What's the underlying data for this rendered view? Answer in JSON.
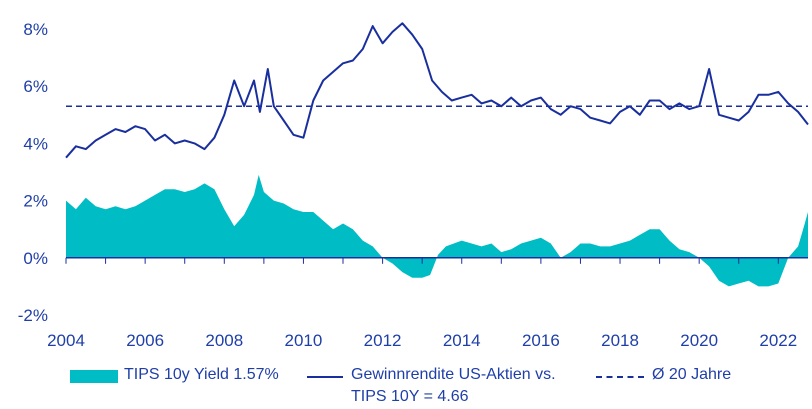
{
  "chart_data": {
    "type": "line",
    "title": "",
    "xlabel": "",
    "ylabel": "",
    "xlim": [
      2004.0,
      2022.75
    ],
    "ylim": [
      -2,
      8
    ],
    "x_ticks": [
      "2004",
      "2006",
      "2008",
      "2010",
      "2012",
      "2014",
      "2016",
      "2018",
      "2020",
      "2022"
    ],
    "y_ticks": [
      "8%",
      "6%",
      "4%",
      "2%",
      "0%",
      "-2%"
    ],
    "y_tick_values": [
      8,
      6,
      4,
      2,
      0,
      -2
    ],
    "x_tick_values": [
      2004,
      2006,
      2008,
      2010,
      2012,
      2014,
      2016,
      2018,
      2020,
      2022
    ],
    "average_value": 5.3,
    "series": [
      {
        "name": "TIPS 10y Yield 1.57%",
        "kind": "area",
        "color": "#00bcc4",
        "points": [
          [
            2004.0,
            2.0
          ],
          [
            2004.25,
            1.7
          ],
          [
            2004.5,
            2.1
          ],
          [
            2004.75,
            1.8
          ],
          [
            2005.0,
            1.7
          ],
          [
            2005.25,
            1.8
          ],
          [
            2005.5,
            1.7
          ],
          [
            2005.75,
            1.8
          ],
          [
            2006.0,
            2.0
          ],
          [
            2006.25,
            2.2
          ],
          [
            2006.5,
            2.4
          ],
          [
            2006.75,
            2.4
          ],
          [
            2007.0,
            2.3
          ],
          [
            2007.25,
            2.4
          ],
          [
            2007.5,
            2.6
          ],
          [
            2007.75,
            2.4
          ],
          [
            2008.0,
            1.7
          ],
          [
            2008.25,
            1.1
          ],
          [
            2008.5,
            1.5
          ],
          [
            2008.75,
            2.2
          ],
          [
            2008.87,
            2.9
          ],
          [
            2009.0,
            2.3
          ],
          [
            2009.25,
            2.0
          ],
          [
            2009.5,
            1.9
          ],
          [
            2009.75,
            1.7
          ],
          [
            2010.0,
            1.6
          ],
          [
            2010.25,
            1.6
          ],
          [
            2010.5,
            1.3
          ],
          [
            2010.75,
            1.0
          ],
          [
            2011.0,
            1.2
          ],
          [
            2011.25,
            1.0
          ],
          [
            2011.5,
            0.6
          ],
          [
            2011.75,
            0.4
          ],
          [
            2012.0,
            0.0
          ],
          [
            2012.25,
            -0.2
          ],
          [
            2012.5,
            -0.5
          ],
          [
            2012.75,
            -0.7
          ],
          [
            2013.0,
            -0.7
          ],
          [
            2013.2,
            -0.6
          ],
          [
            2013.4,
            0.1
          ],
          [
            2013.6,
            0.4
          ],
          [
            2013.8,
            0.5
          ],
          [
            2014.0,
            0.6
          ],
          [
            2014.25,
            0.5
          ],
          [
            2014.5,
            0.4
          ],
          [
            2014.75,
            0.5
          ],
          [
            2015.0,
            0.2
          ],
          [
            2015.25,
            0.3
          ],
          [
            2015.5,
            0.5
          ],
          [
            2015.75,
            0.6
          ],
          [
            2016.0,
            0.7
          ],
          [
            2016.25,
            0.5
          ],
          [
            2016.5,
            0.0
          ],
          [
            2016.75,
            0.2
          ],
          [
            2017.0,
            0.5
          ],
          [
            2017.25,
            0.5
          ],
          [
            2017.5,
            0.4
          ],
          [
            2017.75,
            0.4
          ],
          [
            2018.0,
            0.5
          ],
          [
            2018.25,
            0.6
          ],
          [
            2018.5,
            0.8
          ],
          [
            2018.75,
            1.0
          ],
          [
            2019.0,
            1.0
          ],
          [
            2019.25,
            0.6
          ],
          [
            2019.5,
            0.3
          ],
          [
            2019.75,
            0.2
          ],
          [
            2020.0,
            0.0
          ],
          [
            2020.25,
            -0.3
          ],
          [
            2020.5,
            -0.8
          ],
          [
            2020.75,
            -1.0
          ],
          [
            2021.0,
            -0.9
          ],
          [
            2021.25,
            -0.8
          ],
          [
            2021.5,
            -1.0
          ],
          [
            2021.75,
            -1.0
          ],
          [
            2022.0,
            -0.9
          ],
          [
            2022.25,
            0.0
          ],
          [
            2022.5,
            0.4
          ],
          [
            2022.65,
            1.1
          ],
          [
            2022.75,
            1.6
          ]
        ]
      },
      {
        "name": "Gewinnrendite US-Aktien vs. TIPS 10Y = 4.66",
        "kind": "line",
        "color": "#1a2f9e",
        "points": [
          [
            2004.0,
            3.5
          ],
          [
            2004.25,
            3.9
          ],
          [
            2004.5,
            3.8
          ],
          [
            2004.75,
            4.1
          ],
          [
            2005.0,
            4.3
          ],
          [
            2005.25,
            4.5
          ],
          [
            2005.5,
            4.4
          ],
          [
            2005.75,
            4.6
          ],
          [
            2006.0,
            4.5
          ],
          [
            2006.25,
            4.1
          ],
          [
            2006.5,
            4.3
          ],
          [
            2006.75,
            4.0
          ],
          [
            2007.0,
            4.1
          ],
          [
            2007.25,
            4.0
          ],
          [
            2007.5,
            3.8
          ],
          [
            2007.75,
            4.2
          ],
          [
            2008.0,
            5.0
          ],
          [
            2008.25,
            6.2
          ],
          [
            2008.5,
            5.3
          ],
          [
            2008.75,
            6.2
          ],
          [
            2008.9,
            5.1
          ],
          [
            2009.1,
            6.6
          ],
          [
            2009.25,
            5.3
          ],
          [
            2009.5,
            4.8
          ],
          [
            2009.75,
            4.3
          ],
          [
            2010.0,
            4.2
          ],
          [
            2010.25,
            5.5
          ],
          [
            2010.5,
            6.2
          ],
          [
            2010.75,
            6.5
          ],
          [
            2011.0,
            6.8
          ],
          [
            2011.25,
            6.9
          ],
          [
            2011.5,
            7.3
          ],
          [
            2011.75,
            8.1
          ],
          [
            2012.0,
            7.5
          ],
          [
            2012.25,
            7.9
          ],
          [
            2012.5,
            8.2
          ],
          [
            2012.75,
            7.8
          ],
          [
            2013.0,
            7.3
          ],
          [
            2013.25,
            6.2
          ],
          [
            2013.5,
            5.8
          ],
          [
            2013.75,
            5.5
          ],
          [
            2014.0,
            5.6
          ],
          [
            2014.25,
            5.7
          ],
          [
            2014.5,
            5.4
          ],
          [
            2014.75,
            5.5
          ],
          [
            2015.0,
            5.3
          ],
          [
            2015.25,
            5.6
          ],
          [
            2015.5,
            5.3
          ],
          [
            2015.75,
            5.5
          ],
          [
            2016.0,
            5.6
          ],
          [
            2016.25,
            5.2
          ],
          [
            2016.5,
            5.0
          ],
          [
            2016.75,
            5.3
          ],
          [
            2017.0,
            5.2
          ],
          [
            2017.25,
            4.9
          ],
          [
            2017.5,
            4.8
          ],
          [
            2017.75,
            4.7
          ],
          [
            2018.0,
            5.1
          ],
          [
            2018.25,
            5.3
          ],
          [
            2018.5,
            5.0
          ],
          [
            2018.75,
            5.5
          ],
          [
            2019.0,
            5.5
          ],
          [
            2019.25,
            5.2
          ],
          [
            2019.5,
            5.4
          ],
          [
            2019.75,
            5.2
          ],
          [
            2020.0,
            5.3
          ],
          [
            2020.25,
            6.6
          ],
          [
            2020.5,
            5.0
          ],
          [
            2020.75,
            4.9
          ],
          [
            2021.0,
            4.8
          ],
          [
            2021.25,
            5.1
          ],
          [
            2021.5,
            5.7
          ],
          [
            2021.75,
            5.7
          ],
          [
            2022.0,
            5.8
          ],
          [
            2022.25,
            5.4
          ],
          [
            2022.5,
            5.1
          ],
          [
            2022.75,
            4.66
          ]
        ]
      },
      {
        "name": "Ø 20 Jahre",
        "kind": "dashed-line",
        "color": "#1a2f9e"
      }
    ]
  },
  "legend": {
    "tips_label": "TIPS 10y Yield 1.57%",
    "equity_line1": "Gewinnrendite US-Aktien vs.",
    "equity_line2": "TIPS 10Y = 4.66",
    "average_label": "Ø 20 Jahre"
  }
}
